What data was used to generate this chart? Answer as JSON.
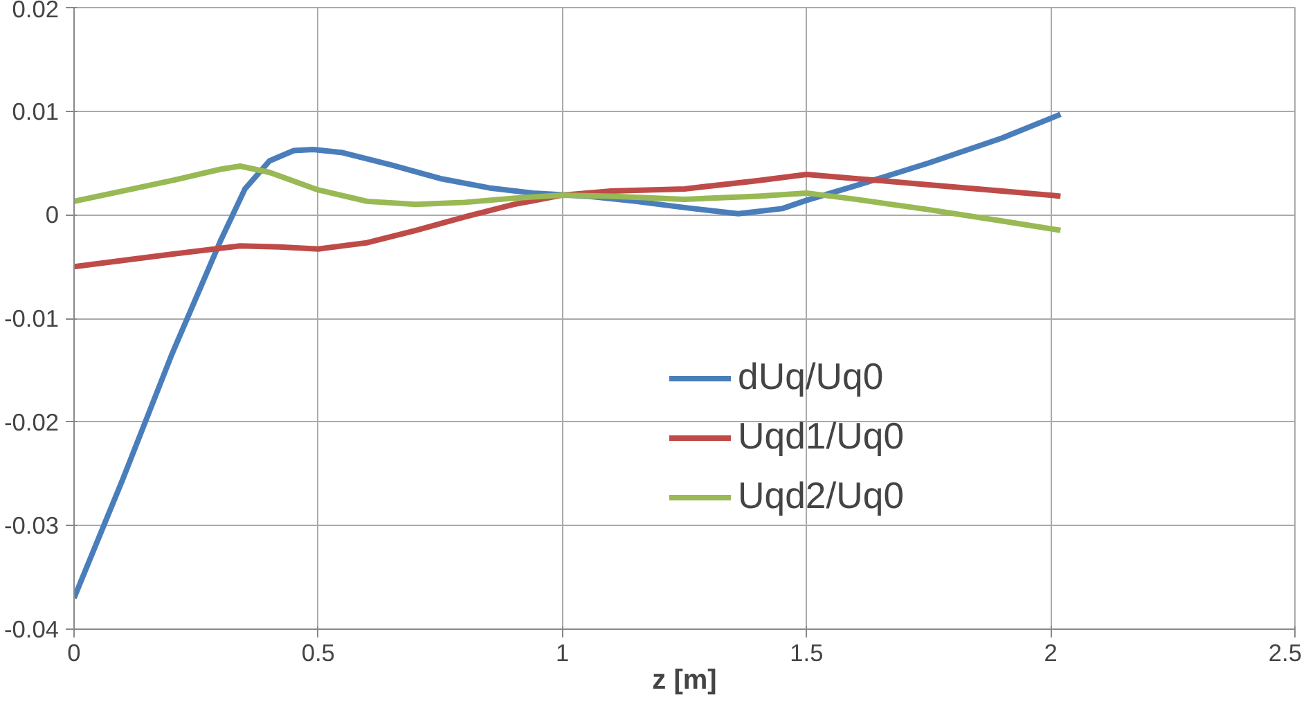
{
  "chart_data": {
    "type": "line",
    "xlabel": "z [m]",
    "xlim": [
      0,
      2.5
    ],
    "xticks": [
      0,
      0.5,
      1,
      1.5,
      2,
      2.5
    ],
    "ylim": [
      -0.04,
      0.02
    ],
    "yticks": [
      -0.04,
      -0.03,
      -0.02,
      -0.01,
      0,
      0.01,
      0.02
    ],
    "grid": true,
    "legend": "center",
    "line_style": "solid",
    "marker": "none",
    "series": [
      {
        "name": "dUq/Uq0",
        "color": "#4a7ebb",
        "x": [
          0,
          0.1,
          0.2,
          0.26,
          0.3,
          0.35,
          0.4,
          0.45,
          0.49,
          0.55,
          0.65,
          0.75,
          0.85,
          0.94,
          1.05,
          1.15,
          1.25,
          1.36,
          1.45,
          1.5,
          1.6,
          1.75,
          1.9,
          2.02
        ],
        "values": [
          -0.037,
          -0.0255,
          -0.0135,
          -0.0069,
          -0.0025,
          0.0025,
          0.0052,
          0.0062,
          0.0063,
          0.006,
          0.0048,
          0.0035,
          0.0026,
          0.0021,
          0.0018,
          0.0013,
          0.0007,
          0.0001,
          0.0006,
          0.0014,
          0.0028,
          0.005,
          0.0074,
          0.0097
        ]
      },
      {
        "name": "Uqd1/Uq0",
        "color": "#be4b48",
        "x": [
          0,
          0.1,
          0.2,
          0.34,
          0.42,
          0.5,
          0.6,
          0.7,
          0.8,
          0.9,
          1.0,
          1.1,
          1.25,
          1.4,
          1.5,
          1.6,
          1.75,
          1.9,
          2.02
        ],
        "values": [
          -0.005,
          -0.0044,
          -0.0038,
          -0.003,
          -0.0031,
          -0.0033,
          -0.0027,
          -0.0015,
          -0.0002,
          0.001,
          0.0019,
          0.0023,
          0.0025,
          0.0033,
          0.0039,
          0.0035,
          0.0029,
          0.0023,
          0.0018
        ]
      },
      {
        "name": "Uqd2/Uq0",
        "color": "#98b954",
        "x": [
          0,
          0.1,
          0.2,
          0.3,
          0.34,
          0.4,
          0.5,
          0.6,
          0.7,
          0.8,
          0.9,
          1.0,
          1.1,
          1.25,
          1.4,
          1.5,
          1.6,
          1.75,
          1.9,
          2.02
        ],
        "values": [
          0.0013,
          0.0023,
          0.0033,
          0.0044,
          0.0047,
          0.0041,
          0.0024,
          0.0013,
          0.001,
          0.0012,
          0.0016,
          0.0019,
          0.0018,
          0.0015,
          0.0018,
          0.0021,
          0.0015,
          0.0005,
          -0.0006,
          -0.0015
        ]
      }
    ]
  }
}
